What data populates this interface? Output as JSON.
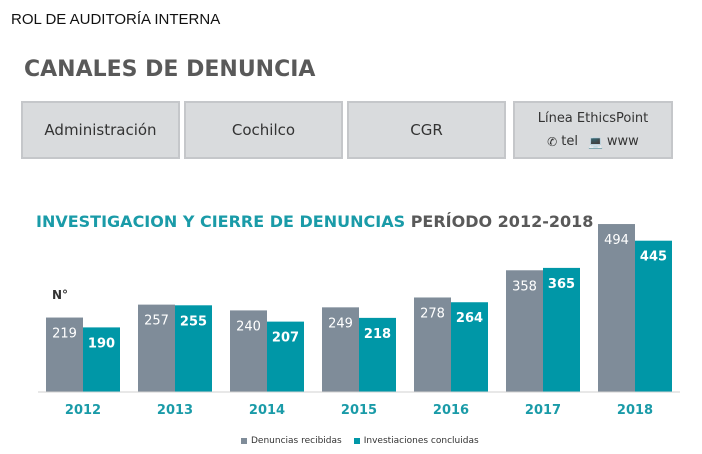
{
  "header": {
    "label": "ROL DE AUDITORÍA INTERNA"
  },
  "section": {
    "title": "CANALES DE DENUNCIA"
  },
  "channels": [
    {
      "label": "Administración"
    },
    {
      "label": "Cochilco"
    },
    {
      "label": "CGR"
    },
    {
      "label": "Línea EthicsPoint",
      "tel_icon": "phone-icon",
      "tel_label": "tel",
      "web_icon": "laptop-icon",
      "web_label": "www"
    }
  ],
  "chart_title": {
    "part1": "INVESTIGACION Y CIERRE DE DENUNCIAS",
    "part2": "PERÍODO 2012-2018"
  },
  "unit_label": "N°",
  "colors": {
    "received": "#7f8c99",
    "concluded": "#0097a7",
    "year_labels": "#1a9ba8",
    "box_bg": "#d9dbdd"
  },
  "chart_data": {
    "type": "bar",
    "title": "INVESTIGACION Y CIERRE DE DENUNCIAS PERÍODO 2012-2018",
    "categories": [
      "2012",
      "2013",
      "2014",
      "2015",
      "2016",
      "2017",
      "2018"
    ],
    "series": [
      {
        "name": "Denuncias recibidas",
        "values": [
          219,
          257,
          240,
          249,
          278,
          358,
          494
        ]
      },
      {
        "name": "Investiaciones concluidas",
        "values": [
          190,
          255,
          207,
          218,
          264,
          365,
          445
        ]
      }
    ],
    "ylabel": "N°",
    "ylim": [
      0,
      500
    ],
    "grid": false,
    "legend": "bottom"
  }
}
